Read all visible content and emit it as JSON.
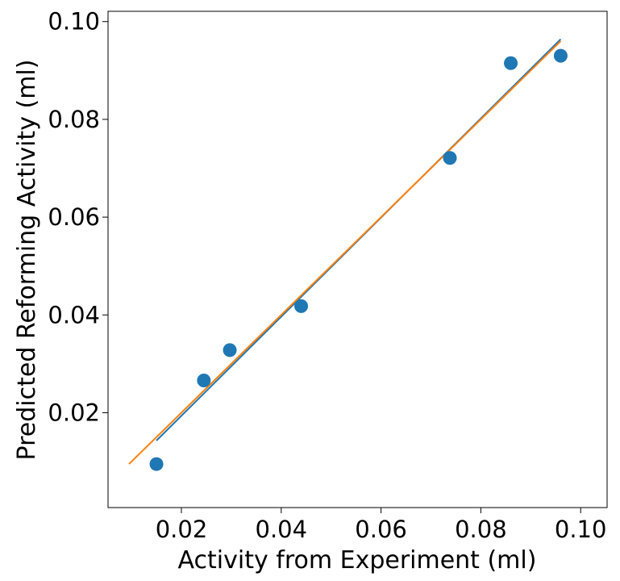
{
  "chart_data": {
    "type": "scatter",
    "xlabel": "Activity from Experiment (ml)",
    "ylabel": "Predicted Reforming Activity (ml)",
    "xlim": [
      0.0053,
      0.1053
    ],
    "ylim": [
      0.0006,
      0.1021
    ],
    "x_ticks": [
      "0.02",
      "0.04",
      "0.06",
      "0.08",
      "0.10"
    ],
    "y_ticks": [
      "0.02",
      "0.04",
      "0.06",
      "0.08",
      "0.10"
    ],
    "grid": false,
    "series": [
      {
        "kind": "scatter",
        "color": "#1f77b4",
        "points": [
          [
            0.015,
            0.0095
          ],
          [
            0.0245,
            0.0266
          ],
          [
            0.0297,
            0.0328
          ],
          [
            0.044,
            0.0418
          ],
          [
            0.0738,
            0.0721
          ],
          [
            0.086,
            0.0915
          ],
          [
            0.096,
            0.093
          ]
        ]
      },
      {
        "kind": "line",
        "color": "#1f77b4",
        "points": [
          [
            0.015,
            0.0143
          ],
          [
            0.096,
            0.0964
          ]
        ]
      },
      {
        "kind": "line",
        "color": "#ff7f0e",
        "points": [
          [
            0.0095,
            0.0095
          ],
          [
            0.096,
            0.096
          ]
        ]
      }
    ]
  }
}
